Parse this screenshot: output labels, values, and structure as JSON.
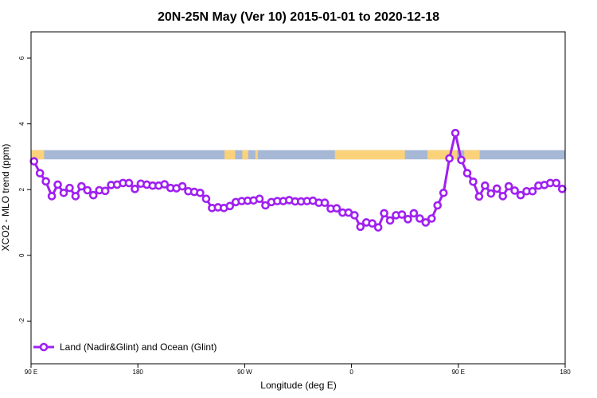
{
  "chart_data": {
    "type": "line",
    "title": "20N-25N May (Ver 10)   2015-01-01 to 2020-12-18",
    "xlabel": "Longitude (deg E)",
    "ylabel": "XCO2 - MLO trend (ppm)",
    "xlim": [
      90,
      540
    ],
    "ylim": [
      -3.3,
      6.8
    ],
    "x_ticks": [
      {
        "value": 90,
        "label": "90 E"
      },
      {
        "value": 180,
        "label": "180"
      },
      {
        "value": 270,
        "label": "90 W"
      },
      {
        "value": 360,
        "label": "0"
      },
      {
        "value": 450,
        "label": "90 E"
      },
      {
        "value": 540,
        "label": "180"
      }
    ],
    "y_ticks": [
      {
        "value": -2,
        "label": "-2"
      },
      {
        "value": 0,
        "label": "0"
      },
      {
        "value": 2,
        "label": "2"
      },
      {
        "value": 4,
        "label": "4"
      },
      {
        "value": 6,
        "label": "6"
      }
    ],
    "land_ocean_strip": {
      "ymin": 2.92,
      "ymax": 3.2,
      "ocean_color": "#a6b8d6",
      "land_color": "#fbd27a",
      "land_segments": [
        [
          90,
          101
        ],
        [
          253,
          262
        ],
        [
          268,
          273
        ],
        [
          279,
          281
        ],
        [
          346,
          405
        ],
        [
          424,
          449
        ],
        [
          455,
          468
        ]
      ]
    },
    "series": [
      {
        "name": "Land (Nadir&Glint) and Ocean (Glint)",
        "color": "#a020f0",
        "x": [
          92.5,
          97.5,
          102.5,
          107.5,
          112.5,
          117.5,
          122.5,
          127.5,
          132.5,
          137.5,
          142.5,
          147.5,
          152.5,
          157.5,
          162.5,
          167.5,
          172.5,
          177.5,
          182.5,
          187.5,
          192.5,
          197.5,
          202.5,
          207.5,
          212.5,
          217.5,
          222.5,
          227.5,
          232.5,
          237.5,
          242.5,
          247.5,
          252.5,
          257.5,
          262.5,
          267.5,
          272.5,
          277.5,
          282.5,
          287.5,
          292.5,
          297.5,
          302.5,
          307.5,
          312.5,
          317.5,
          322.5,
          327.5,
          332.5,
          337.5,
          342.5,
          347.5,
          352.5,
          357.5,
          362.5,
          367.5,
          372.5,
          377.5,
          382.5,
          387.5,
          392.5,
          397.5,
          402.5,
          407.5,
          412.5,
          417.5,
          422.5,
          427.5,
          432.5,
          437.5,
          442.5,
          447.5,
          452.5,
          457.5,
          462.5,
          467.5,
          472.5,
          477.5,
          482.5,
          487.5,
          492.5,
          497.5,
          502.5,
          507.5,
          512.5,
          517.5,
          522.5,
          527.5,
          532.5,
          537.5
        ],
        "y": [
          2.86,
          2.5,
          2.25,
          1.8,
          2.15,
          1.9,
          2.05,
          1.8,
          2.1,
          1.98,
          1.83,
          1.98,
          1.96,
          2.14,
          2.15,
          2.2,
          2.2,
          2.02,
          2.18,
          2.15,
          2.12,
          2.12,
          2.16,
          2.05,
          2.04,
          2.1,
          1.95,
          1.93,
          1.9,
          1.72,
          1.44,
          1.46,
          1.44,
          1.5,
          1.62,
          1.65,
          1.66,
          1.67,
          1.72,
          1.52,
          1.62,
          1.65,
          1.65,
          1.68,
          1.64,
          1.64,
          1.65,
          1.66,
          1.6,
          1.6,
          1.42,
          1.43,
          1.3,
          1.3,
          1.22,
          0.87,
          1.0,
          0.97,
          0.85,
          1.28,
          1.06,
          1.22,
          1.24,
          1.1,
          1.28,
          1.12,
          1.0,
          1.12,
          1.52,
          1.9,
          2.95,
          3.72,
          2.9,
          2.5,
          2.24,
          1.79,
          2.12,
          1.88,
          2.03,
          1.8,
          2.1,
          1.97,
          1.83,
          1.95,
          1.95,
          2.12,
          2.14,
          2.2,
          2.2,
          2.02
        ]
      }
    ],
    "legend": {
      "position": "bottom-left"
    },
    "grid": false
  }
}
